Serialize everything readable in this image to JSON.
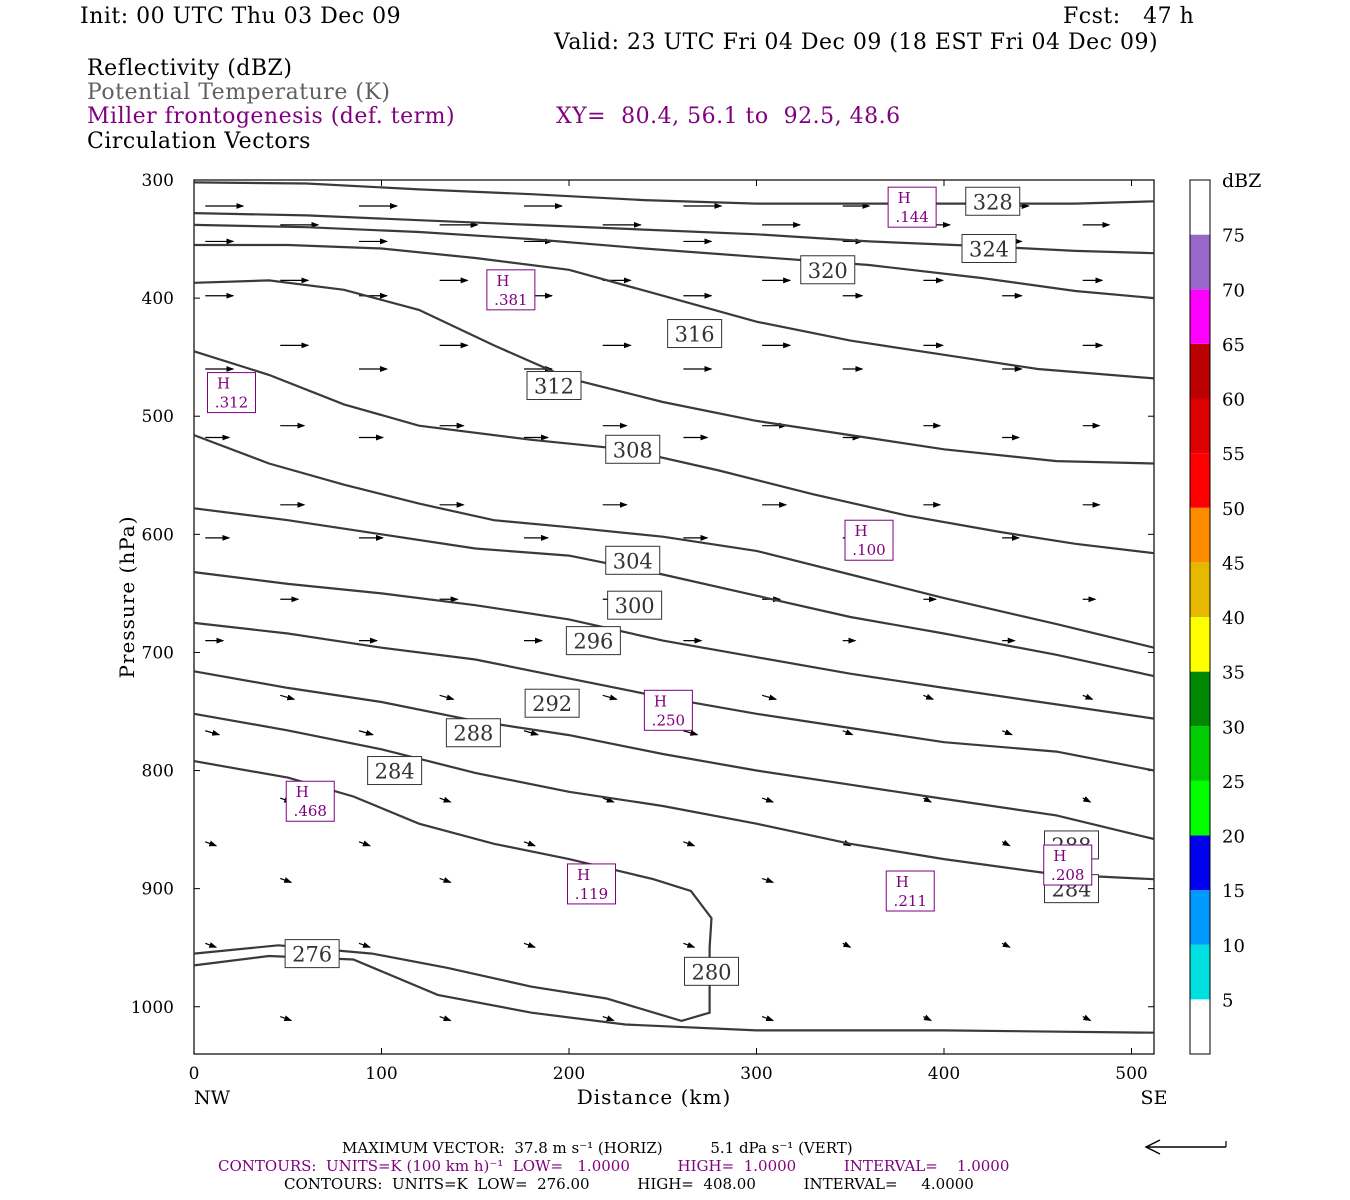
{
  "header": {
    "init": "Init: 00 UTC Thu 03 Dec 09",
    "fcst": "Fcst:   47 h",
    "valid": "Valid: 23 UTC Fri 04 Dec 09 (18 EST Fri 04 Dec 09)",
    "field1": "Reflectivity (dBZ)",
    "field2": "Potential Temperature (K)",
    "field3": "Miller frontogenesis (def. term)",
    "xy": "XY=  80.4, 56.1 to  92.5, 48.6",
    "field4": "Circulation Vectors"
  },
  "footer": {
    "maxvec": "MAXIMUM VECTOR:  37.8 m s⁻¹ (HORIZ)          5.1 dPa s⁻¹ (VERT)",
    "contours1": "CONTOURS:  UNITS=K (100 km h)⁻¹  LOW=   1.0000          HIGH=  1.0000          INTERVAL=    1.0000",
    "contours2": "CONTOURS:  UNITS=K  LOW=  276.00          HIGH=  408.00          INTERVAL=     4.0000"
  },
  "colors": {
    "theta": "#3a3a3a",
    "frontogenesis": "#800080",
    "dbz_scale": [
      "#ffffff",
      "#00e0e0",
      "#0099ff",
      "#0000ee",
      "#00ff00",
      "#00cc00",
      "#008800",
      "#ffff00",
      "#e6b800",
      "#ff8c00",
      "#ff0000",
      "#dd0000",
      "#bb0000",
      "#ff00ff",
      "#9966cc",
      "#ffffff"
    ]
  },
  "colorbar": {
    "title": "dBZ",
    "labels": [
      "5",
      "10",
      "15",
      "20",
      "25",
      "30",
      "35",
      "40",
      "45",
      "50",
      "55",
      "60",
      "65",
      "70",
      "75"
    ]
  },
  "chart_data": {
    "type": "cross-section",
    "xlabel": "Distance (km)",
    "ylabel": "Pressure (hPa)",
    "xlim": [
      0,
      512
    ],
    "ylim": [
      1040,
      300
    ],
    "x_ticks": [
      "0",
      "100",
      "200",
      "300",
      "400",
      "500"
    ],
    "y_ticks": [
      "300",
      "400",
      "500",
      "600",
      "700",
      "800",
      "900",
      "1000"
    ],
    "x_end_labels": {
      "left": "NW",
      "right": "SE"
    },
    "theta_contours": [
      {
        "label": "276",
        "label_at": [
          63,
          955
        ],
        "points": [
          [
            0,
            965
          ],
          [
            40,
            957
          ],
          [
            85,
            960
          ],
          [
            130,
            990
          ],
          [
            180,
            1005
          ],
          [
            230,
            1015
          ],
          [
            300,
            1020
          ],
          [
            400,
            1020
          ],
          [
            512,
            1022
          ]
        ]
      },
      {
        "label": "280",
        "label_at": [
          276,
          970
        ],
        "points": [
          [
            0,
            955
          ],
          [
            45,
            948
          ],
          [
            95,
            955
          ],
          [
            135,
            967
          ],
          [
            180,
            983
          ],
          [
            220,
            993
          ],
          [
            260,
            1012
          ],
          [
            275,
            1005
          ],
          [
            275,
            950
          ],
          [
            276,
            925
          ],
          [
            265,
            902
          ],
          [
            245,
            892
          ],
          [
            200,
            875
          ],
          [
            160,
            862
          ],
          [
            120,
            845
          ],
          [
            85,
            822
          ],
          [
            50,
            806
          ],
          [
            0,
            792
          ]
        ]
      },
      {
        "label": "284",
        "label_at": [
          107,
          800
        ],
        "points": [
          [
            0,
            752
          ],
          [
            50,
            766
          ],
          [
            100,
            782
          ],
          [
            150,
            802
          ],
          [
            200,
            818
          ],
          [
            250,
            830
          ],
          [
            300,
            845
          ],
          [
            350,
            862
          ],
          [
            400,
            875
          ],
          [
            460,
            888
          ],
          [
            512,
            892
          ]
        ]
      },
      {
        "label": "284",
        "label_at": [
          468,
          900
        ],
        "points": []
      },
      {
        "label": "288",
        "label_at": [
          149,
          768
        ],
        "points": [
          [
            0,
            716
          ],
          [
            50,
            730
          ],
          [
            100,
            742
          ],
          [
            150,
            758
          ],
          [
            200,
            770
          ],
          [
            250,
            786
          ],
          [
            300,
            800
          ],
          [
            350,
            812
          ],
          [
            400,
            824
          ],
          [
            460,
            838
          ],
          [
            512,
            858
          ]
        ]
      },
      {
        "label": "288",
        "label_at": [
          468,
          863
        ],
        "points": []
      },
      {
        "label": "292",
        "label_at": [
          191,
          743
        ],
        "points": [
          [
            0,
            675
          ],
          [
            50,
            684
          ],
          [
            100,
            696
          ],
          [
            150,
            706
          ],
          [
            200,
            722
          ],
          [
            250,
            738
          ],
          [
            300,
            752
          ],
          [
            350,
            764
          ],
          [
            400,
            776
          ],
          [
            460,
            784
          ],
          [
            512,
            800
          ]
        ]
      },
      {
        "label": "296",
        "label_at": [
          213,
          690
        ],
        "points": [
          [
            0,
            632
          ],
          [
            50,
            642
          ],
          [
            100,
            650
          ],
          [
            150,
            660
          ],
          [
            200,
            672
          ],
          [
            250,
            690
          ],
          [
            300,
            704
          ],
          [
            350,
            718
          ],
          [
            400,
            730
          ],
          [
            460,
            744
          ],
          [
            512,
            756
          ]
        ]
      },
      {
        "label": "300",
        "label_at": [
          235,
          660
        ],
        "points": [
          [
            0,
            578
          ],
          [
            50,
            588
          ],
          [
            100,
            600
          ],
          [
            150,
            612
          ],
          [
            200,
            618
          ],
          [
            250,
            634
          ],
          [
            300,
            652
          ],
          [
            350,
            670
          ],
          [
            400,
            684
          ],
          [
            460,
            702
          ],
          [
            512,
            720
          ]
        ]
      },
      {
        "label": "304",
        "label_at": [
          234,
          622
        ],
        "points": [
          [
            0,
            516
          ],
          [
            40,
            540
          ],
          [
            80,
            558
          ],
          [
            120,
            574
          ],
          [
            160,
            588
          ],
          [
            200,
            594
          ],
          [
            250,
            602
          ],
          [
            300,
            614
          ],
          [
            350,
            634
          ],
          [
            400,
            654
          ],
          [
            460,
            676
          ],
          [
            512,
            696
          ]
        ]
      },
      {
        "label": "308",
        "label_at": [
          234,
          528
        ],
        "points": [
          [
            0,
            445
          ],
          [
            40,
            465
          ],
          [
            80,
            490
          ],
          [
            120,
            508
          ],
          [
            180,
            520
          ],
          [
            230,
            528
          ],
          [
            280,
            546
          ],
          [
            330,
            566
          ],
          [
            380,
            584
          ],
          [
            430,
            598
          ],
          [
            470,
            608
          ],
          [
            512,
            616
          ]
        ]
      },
      {
        "label": "312",
        "label_at": [
          192,
          474
        ],
        "points": [
          [
            0,
            387
          ],
          [
            40,
            385
          ],
          [
            80,
            393
          ],
          [
            120,
            410
          ],
          [
            160,
            440
          ],
          [
            200,
            468
          ],
          [
            250,
            488
          ],
          [
            300,
            504
          ],
          [
            350,
            516
          ],
          [
            400,
            528
          ],
          [
            460,
            538
          ],
          [
            512,
            540
          ]
        ]
      },
      {
        "label": "316",
        "label_at": [
          267,
          430
        ],
        "points": [
          [
            0,
            355
          ],
          [
            50,
            355
          ],
          [
            100,
            358
          ],
          [
            150,
            366
          ],
          [
            200,
            376
          ],
          [
            250,
            398
          ],
          [
            300,
            420
          ],
          [
            350,
            436
          ],
          [
            400,
            448
          ],
          [
            450,
            460
          ],
          [
            512,
            468
          ]
        ]
      },
      {
        "label": "320",
        "label_at": [
          338,
          376
        ],
        "points": [
          [
            0,
            338
          ],
          [
            60,
            340
          ],
          [
            120,
            344
          ],
          [
            180,
            350
          ],
          [
            240,
            358
          ],
          [
            300,
            365
          ],
          [
            360,
            372
          ],
          [
            420,
            383
          ],
          [
            470,
            394
          ],
          [
            512,
            400
          ]
        ]
      },
      {
        "label": "324",
        "label_at": [
          424,
          358
        ],
        "points": [
          [
            0,
            328
          ],
          [
            60,
            330
          ],
          [
            120,
            334
          ],
          [
            180,
            338
          ],
          [
            240,
            342
          ],
          [
            300,
            346
          ],
          [
            360,
            352
          ],
          [
            420,
            356
          ],
          [
            470,
            360
          ],
          [
            512,
            362
          ]
        ]
      },
      {
        "label": "328",
        "label_at": [
          426,
          318
        ],
        "points": [
          [
            0,
            302
          ],
          [
            60,
            303
          ],
          [
            120,
            308
          ],
          [
            180,
            312
          ],
          [
            240,
            317
          ],
          [
            300,
            320
          ],
          [
            360,
            320
          ],
          [
            420,
            320
          ],
          [
            470,
            320
          ],
          [
            512,
            318
          ]
        ]
      }
    ],
    "frontogenesis_maxima": [
      {
        "label": "H .144",
        "x": 383,
        "p": 323
      },
      {
        "label": "H .381",
        "x": 169,
        "p": 393
      },
      {
        "label": "H .312",
        "x": 20,
        "p": 480
      },
      {
        "label": "H .100",
        "x": 360,
        "p": 605
      },
      {
        "label": "H .250",
        "x": 253,
        "p": 749
      },
      {
        "label": "H .468",
        "x": 62,
        "p": 826
      },
      {
        "label": "H .119",
        "x": 212,
        "p": 896
      },
      {
        "label": "H .211",
        "x": 382,
        "p": 902
      },
      {
        "label": "H .208",
        "x": 466,
        "p": 880
      }
    ],
    "vectors_note": "horizontal circulation vectors, lengths decreasing with pressure"
  }
}
